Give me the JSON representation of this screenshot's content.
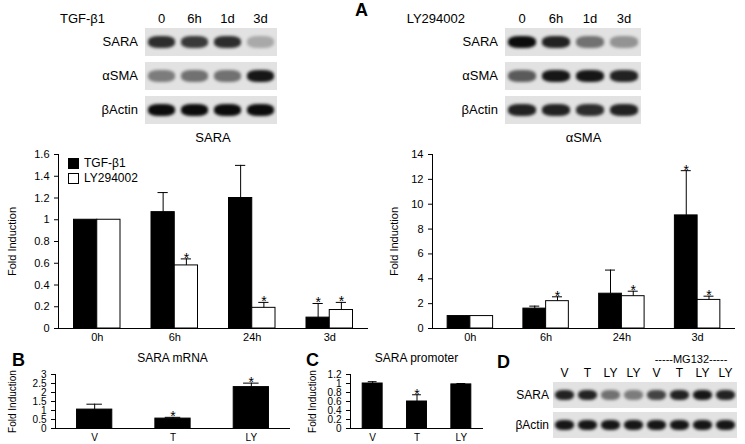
{
  "significance_mark": "*",
  "chart_data": [
    {
      "type": "bar",
      "title": "SARA",
      "y_label": "Fold Induction",
      "categories": [
        "0h",
        "6h",
        "24h",
        "3d"
      ],
      "ylim": [
        0,
        1.6
      ],
      "yticks": [
        0,
        0.2,
        0.4,
        0.6,
        0.8,
        1,
        1.2,
        1.4,
        1.6
      ],
      "legend": "top-left",
      "series": [
        {
          "name": "TGF-β1",
          "color": "#000000",
          "values": [
            1,
            1.07,
            1.2,
            0.1
          ],
          "errors": [
            null,
            0.18,
            0.3,
            0.13
          ],
          "significant": [
            false,
            false,
            false,
            true
          ]
        },
        {
          "name": "LY294002",
          "color": "#ffffff",
          "values": [
            1,
            0.58,
            0.19,
            0.17
          ],
          "errors": [
            null,
            0.06,
            0.05,
            0.07
          ],
          "significant": [
            false,
            true,
            true,
            true
          ]
        }
      ]
    },
    {
      "type": "bar",
      "title": "αSMA",
      "y_label": "Fold Induction",
      "categories": [
        "0h",
        "6h",
        "24h",
        "3d"
      ],
      "ylim": [
        0,
        14
      ],
      "yticks": [
        0,
        2,
        4,
        6,
        8,
        10,
        12,
        14
      ],
      "series": [
        {
          "color": "#000000",
          "values": [
            1,
            1.6,
            2.8,
            9.1
          ],
          "errors": [
            null,
            0.2,
            1.9,
            3.6
          ],
          "significant": [
            false,
            false,
            false,
            true
          ]
        },
        {
          "color": "#ffffff",
          "values": [
            1,
            2.2,
            2.6,
            2.3
          ],
          "errors": [
            null,
            0.35,
            0.4,
            0.3
          ],
          "significant": [
            false,
            true,
            true,
            true
          ]
        }
      ]
    },
    {
      "type": "bar",
      "panel": "B",
      "title": "SARA mRNA",
      "y_label": "Fold Induction",
      "categories": [
        "V",
        "T",
        "LY"
      ],
      "ylim": [
        0,
        3
      ],
      "yticks": [
        0,
        0.5,
        1,
        1.5,
        2,
        2.5,
        3
      ],
      "series": [
        {
          "color": "#000000",
          "values": [
            1.05,
            0.55,
            2.3
          ],
          "errors": [
            0.3,
            0.07,
            0.22
          ],
          "significant": [
            false,
            true,
            true
          ]
        }
      ]
    },
    {
      "type": "bar",
      "panel": "C",
      "title": "SARA promoter",
      "y_label": "Fold Induction",
      "categories": [
        "V",
        "T",
        "LY"
      ],
      "ylim": [
        0,
        1.2
      ],
      "yticks": [
        0,
        0.2,
        0.4,
        0.6,
        0.8,
        1,
        1.2
      ],
      "series": [
        {
          "color": "#000000",
          "values": [
            1,
            0.6,
            0.98
          ],
          "errors": [
            0.04,
            0.15,
            0.02
          ],
          "significant": [
            false,
            true,
            false
          ]
        }
      ]
    }
  ],
  "blots": [
    {
      "panel": "A",
      "header": "TGF-β1",
      "lanes": [
        "0",
        "6h",
        "1d",
        "3d"
      ],
      "rows": [
        {
          "label": "SARA",
          "intensity": [
            0.8,
            0.75,
            0.8,
            0.25
          ]
        },
        {
          "label": "αSMA",
          "intensity": [
            0.45,
            0.5,
            0.5,
            0.9
          ]
        },
        {
          "label": "βActin",
          "intensity": [
            0.95,
            0.95,
            0.95,
            0.95
          ]
        }
      ]
    },
    {
      "header": "LY294002",
      "lanes": [
        "0",
        "6h",
        "1d",
        "3d"
      ],
      "rows": [
        {
          "label": "SARA",
          "intensity": [
            0.95,
            0.85,
            0.5,
            0.35
          ]
        },
        {
          "label": "αSMA",
          "intensity": [
            0.6,
            0.9,
            0.9,
            0.85
          ]
        },
        {
          "label": "βActin",
          "intensity": [
            0.85,
            0.85,
            0.8,
            0.85
          ]
        }
      ]
    },
    {
      "panel": "D",
      "header": "-----MG132-----",
      "header_lanes": [
        4,
        7
      ],
      "lanes": [
        "V",
        "T",
        "LY",
        "LY",
        "V",
        "T",
        "LY",
        "LY"
      ],
      "rows": [
        {
          "label": "SARA",
          "intensity": [
            0.85,
            0.85,
            0.5,
            0.45,
            0.7,
            0.85,
            0.9,
            0.85
          ]
        },
        {
          "label": "βActin",
          "intensity": [
            0.9,
            0.9,
            0.9,
            0.9,
            0.9,
            0.9,
            0.9,
            0.9
          ]
        }
      ]
    }
  ]
}
